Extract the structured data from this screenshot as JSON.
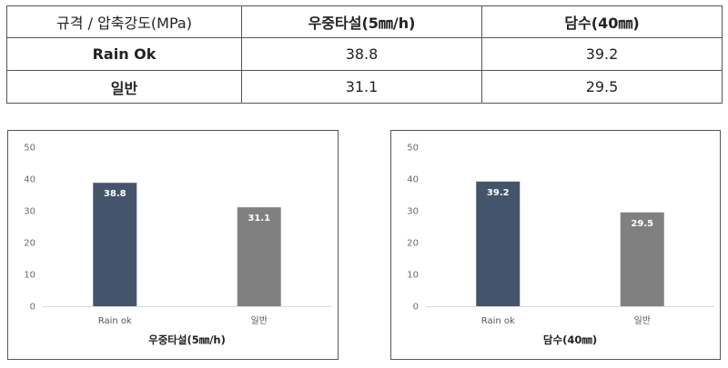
{
  "table": {
    "headers": [
      "규격 / 압축강도(MPa)",
      "우중타설(5㎜/h)",
      "담수(40㎜)"
    ],
    "rows": [
      {
        "name": "Rain Ok",
        "values": [
          "38.8",
          "39.2"
        ]
      },
      {
        "name": "일반",
        "values": [
          "31.1",
          "29.5"
        ]
      }
    ]
  },
  "chart_data": [
    {
      "type": "bar",
      "title": "우중타설(5㎜/h)",
      "categories": [
        "Rain ok",
        "일반"
      ],
      "values": [
        38.8,
        31.1
      ],
      "value_labels": [
        "38.8",
        "31.1"
      ],
      "ylim": [
        0,
        50
      ],
      "yticks": [
        "0",
        "10",
        "20",
        "30",
        "40",
        "50"
      ],
      "grid": false,
      "colors": [
        "#44546a",
        "#808080"
      ]
    },
    {
      "type": "bar",
      "title": "담수(40㎜)",
      "categories": [
        "Rain ok",
        "일반"
      ],
      "values": [
        39.2,
        29.5
      ],
      "value_labels": [
        "39.2",
        "29.5"
      ],
      "ylim": [
        0,
        50
      ],
      "yticks": [
        "0",
        "10",
        "20",
        "30",
        "40",
        "50"
      ],
      "grid": false,
      "colors": [
        "#44546a",
        "#808080"
      ]
    }
  ]
}
